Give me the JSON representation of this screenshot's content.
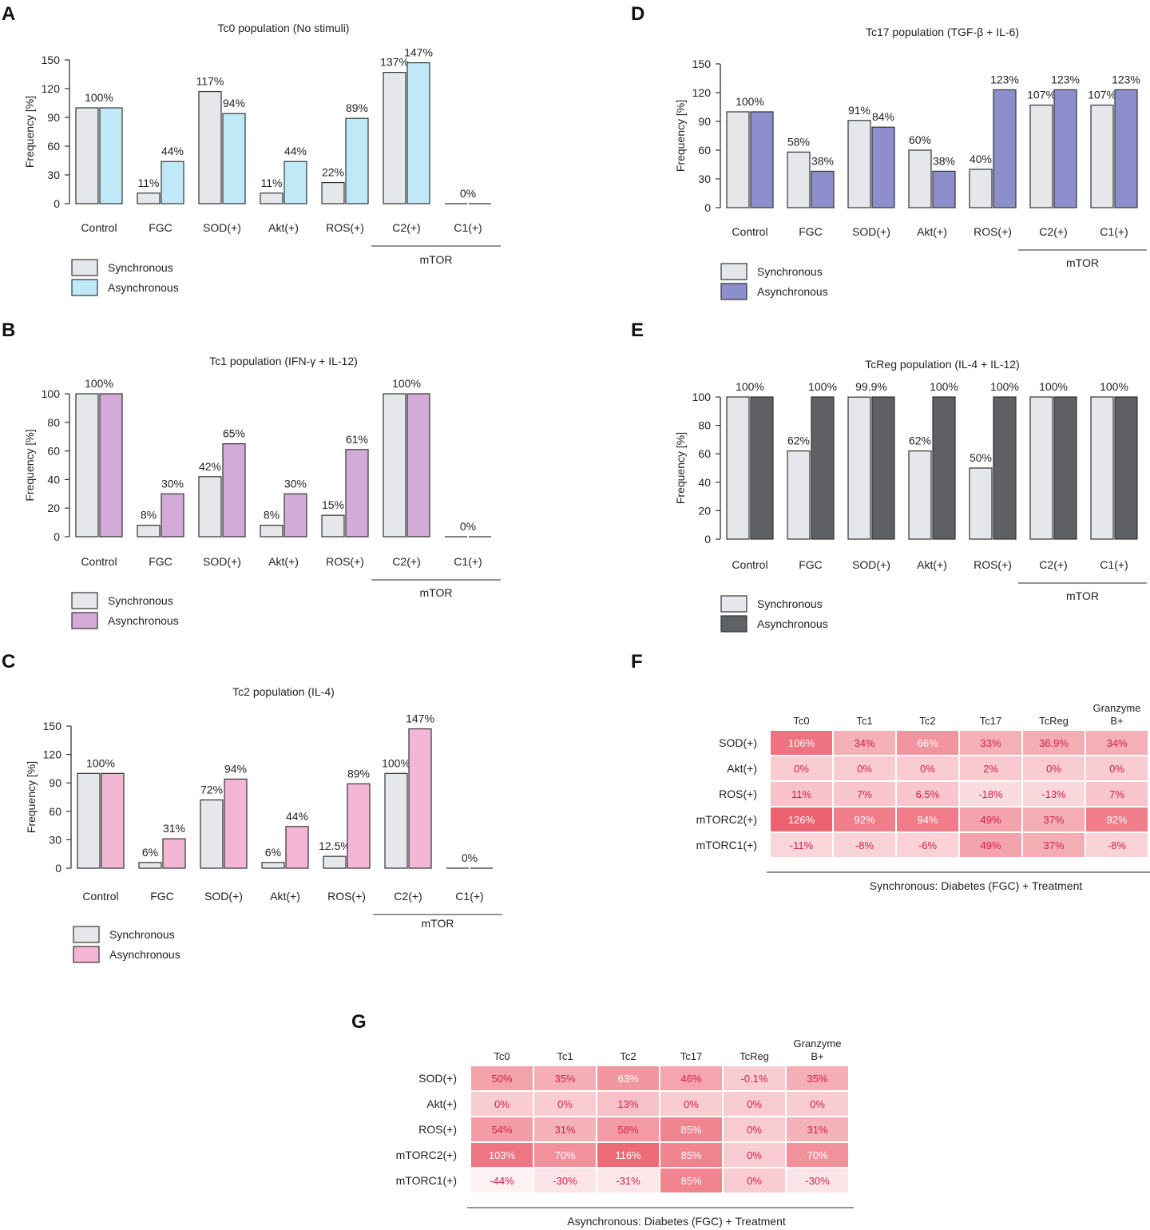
{
  "panels": {
    "A": "A",
    "B": "B",
    "C": "C",
    "D": "D",
    "E": "E",
    "F": "F",
    "G": "G"
  },
  "colors": {
    "synchronous": "#e6e7ea",
    "tc0_async": "#bfe9f7",
    "tc1_async": "#d4aad8",
    "tc2_async": "#f4b6d5",
    "tc17_async": "#8e8ecc",
    "tcreg_async": "#5f6064",
    "heat_text": "#d5204a"
  },
  "chart_data": [
    {
      "id": "A",
      "type": "bar",
      "title": "Tc0 population (No stimuli)",
      "ylabel": "Frequency [%]",
      "ylim": [
        0,
        150
      ],
      "yticks": [
        0,
        30,
        60,
        90,
        120,
        150
      ],
      "categories": [
        "Control",
        "FGC",
        "SOD(+)",
        "Akt(+)",
        "ROS(+)",
        "C2(+)",
        "C1(+)"
      ],
      "group_label": "mTOR",
      "series": [
        {
          "name": "Synchronous",
          "values": [
            100,
            11,
            117,
            11,
            22,
            137,
            0
          ]
        },
        {
          "name": "Asynchronous",
          "values": [
            100,
            44,
            94,
            44,
            89,
            147,
            0
          ]
        }
      ],
      "labels": [
        [
          "100%",
          ""
        ],
        [
          "11%",
          "44%"
        ],
        [
          "117%",
          "94%"
        ],
        [
          "11%",
          "44%"
        ],
        [
          "22%",
          "89%"
        ],
        [
          "137%",
          "147%"
        ],
        [
          "",
          "0%"
        ]
      ],
      "legend": [
        "Synchronous",
        "Asynchronous"
      ]
    },
    {
      "id": "B",
      "type": "bar",
      "title": "Tc1 population (IFN-γ + IL-12)",
      "ylabel": "Frequency [%]",
      "ylim": [
        0,
        100
      ],
      "yticks": [
        0,
        20,
        40,
        60,
        80,
        100
      ],
      "categories": [
        "Control",
        "FGC",
        "SOD(+)",
        "Akt(+)",
        "ROS(+)",
        "C2(+)",
        "C1(+)"
      ],
      "group_label": "mTOR",
      "series": [
        {
          "name": "Synchronous",
          "values": [
            100,
            8,
            42,
            8,
            15,
            100,
            0
          ]
        },
        {
          "name": "Asynchronous",
          "values": [
            100,
            30,
            65,
            30,
            61,
            100,
            0
          ]
        }
      ],
      "labels": [
        [
          "100%",
          ""
        ],
        [
          "8%",
          "30%"
        ],
        [
          "42%",
          "65%"
        ],
        [
          "8%",
          "30%"
        ],
        [
          "15%",
          "61%"
        ],
        [
          "100%",
          ""
        ],
        [
          "",
          "0%"
        ]
      ],
      "legend": [
        "Synchronous",
        "Asynchronous"
      ]
    },
    {
      "id": "C",
      "type": "bar",
      "title": "Tc2 population (IL-4)",
      "ylabel": "Frequency [%]",
      "ylim": [
        0,
        150
      ],
      "yticks": [
        0,
        30,
        60,
        90,
        120,
        150
      ],
      "categories": [
        "Control",
        "FGC",
        "SOD(+)",
        "Akt(+)",
        "ROS(+)",
        "C2(+)",
        "C1(+)"
      ],
      "group_label": "mTOR",
      "series": [
        {
          "name": "Synchronous",
          "values": [
            100,
            6,
            72,
            6,
            12.5,
            100,
            0
          ]
        },
        {
          "name": "Asynchronous",
          "values": [
            100,
            31,
            94,
            44,
            89,
            147,
            0
          ]
        }
      ],
      "labels": [
        [
          "100%",
          ""
        ],
        [
          "6%",
          "31%"
        ],
        [
          "72%",
          "94%"
        ],
        [
          "6%",
          "44%"
        ],
        [
          "12.5%",
          "89%"
        ],
        [
          "100%",
          "147%"
        ],
        [
          "",
          "0%"
        ]
      ],
      "legend": [
        "Synchronous",
        "Asynchronous"
      ]
    },
    {
      "id": "D",
      "type": "bar",
      "title": "Tc17 population (TGF-β + IL-6)",
      "ylabel": "Frequency [%]",
      "ylim": [
        0,
        150
      ],
      "yticks": [
        0,
        30,
        60,
        90,
        120,
        150
      ],
      "categories": [
        "Control",
        "FGC",
        "SOD(+)",
        "Akt(+)",
        "ROS(+)",
        "C2(+)",
        "C1(+)"
      ],
      "group_label": "mTOR",
      "series": [
        {
          "name": "Synchronous",
          "values": [
            100,
            58,
            91,
            60,
            40,
            107,
            107
          ]
        },
        {
          "name": "Asynchronous",
          "values": [
            100,
            38,
            84,
            38,
            123,
            123,
            123
          ]
        }
      ],
      "labels": [
        [
          "100%",
          ""
        ],
        [
          "58%",
          "38%"
        ],
        [
          "91%",
          "84%"
        ],
        [
          "60%",
          "38%"
        ],
        [
          "40%",
          "123%"
        ],
        [
          "107%",
          "123%"
        ],
        [
          "107%",
          "123%"
        ]
      ],
      "legend": [
        "Synchronous",
        "Asynchronous"
      ]
    },
    {
      "id": "E",
      "type": "bar",
      "title": "TcReg population (IL-4 + IL-12)",
      "ylabel": "Frequency [%]",
      "ylim": [
        0,
        100
      ],
      "yticks": [
        0,
        20,
        40,
        60,
        80,
        100
      ],
      "categories": [
        "Control",
        "FGC",
        "SOD(+)",
        "Akt(+)",
        "ROS(+)",
        "C2(+)",
        "C1(+)"
      ],
      "group_label": "mTOR",
      "series": [
        {
          "name": "Synchronous",
          "values": [
            100,
            62,
            99.9,
            62,
            50,
            100,
            100
          ]
        },
        {
          "name": "Asynchronous",
          "values": [
            100,
            100,
            100,
            100,
            100,
            100,
            100
          ]
        }
      ],
      "labels": [
        [
          "100%",
          ""
        ],
        [
          "62%",
          "100%"
        ],
        [
          "99.9%",
          ""
        ],
        [
          "62%",
          "100%"
        ],
        [
          "50%",
          "100%"
        ],
        [
          "100%",
          ""
        ],
        [
          "100%",
          ""
        ]
      ],
      "legend": [
        "Synchronous",
        "Asynchronous"
      ]
    },
    {
      "id": "F",
      "type": "heatmap",
      "xlabel": "Synchronous: Diabetes (FGC) + Treatment",
      "columns": [
        "Tc0",
        "Tc1",
        "Tc2",
        "Tc17",
        "TcReg",
        "Granzyme B+"
      ],
      "rows": [
        "SOD(+)",
        "Akt(+)",
        "ROS(+)",
        "mTORC2(+)",
        "mTORC1(+)"
      ],
      "values": [
        [
          106,
          34,
          66,
          33,
          36.9,
          34
        ],
        [
          0,
          0,
          0,
          2,
          0,
          0
        ],
        [
          11,
          7,
          6.5,
          -18,
          -13,
          7
        ],
        [
          126,
          92,
          94,
          49,
          37,
          92
        ],
        [
          -11,
          -8,
          -6,
          49,
          37,
          -8
        ]
      ],
      "labels": [
        [
          "106%",
          "34%",
          "66%",
          "33%",
          "36.9%",
          "34%"
        ],
        [
          "0%",
          "0%",
          "0%",
          "2%",
          "0%",
          "0%"
        ],
        [
          "11%",
          "7%",
          "6.5%",
          "-18%",
          "-13%",
          "7%"
        ],
        [
          "126%",
          "92%",
          "94%",
          "49%",
          "37%",
          "92%"
        ],
        [
          "-11%",
          "-8%",
          "-6%",
          "49%",
          "37%",
          "-8%"
        ]
      ]
    },
    {
      "id": "G",
      "type": "heatmap",
      "xlabel": "Asynchronous: Diabetes (FGC) + Treatment",
      "columns": [
        "Tc0",
        "Tc1",
        "Tc2",
        "Tc17",
        "TcReg",
        "Granzyme B+"
      ],
      "rows": [
        "SOD(+)",
        "Akt(+)",
        "ROS(+)",
        "mTORC2(+)",
        "mTORC1(+)"
      ],
      "values": [
        [
          50,
          35,
          63,
          46,
          -0.1,
          35
        ],
        [
          0,
          0,
          13,
          0,
          0,
          0
        ],
        [
          54,
          31,
          58,
          85,
          0,
          31
        ],
        [
          103,
          70,
          116,
          85,
          0,
          70
        ],
        [
          -44,
          -30,
          -31,
          85,
          0,
          -30
        ]
      ],
      "labels": [
        [
          "50%",
          "35%",
          "63%",
          "46%",
          "-0.1%",
          "35%"
        ],
        [
          "0%",
          "0%",
          "13%",
          "0%",
          "0%",
          "0%"
        ],
        [
          "54%",
          "31%",
          "58%",
          "85%",
          "0%",
          "31%"
        ],
        [
          "103%",
          "70%",
          "116%",
          "85%",
          "0%",
          "70%"
        ],
        [
          "-44%",
          "-30%",
          "-31%",
          "85%",
          "0%",
          "-30%"
        ]
      ]
    }
  ]
}
